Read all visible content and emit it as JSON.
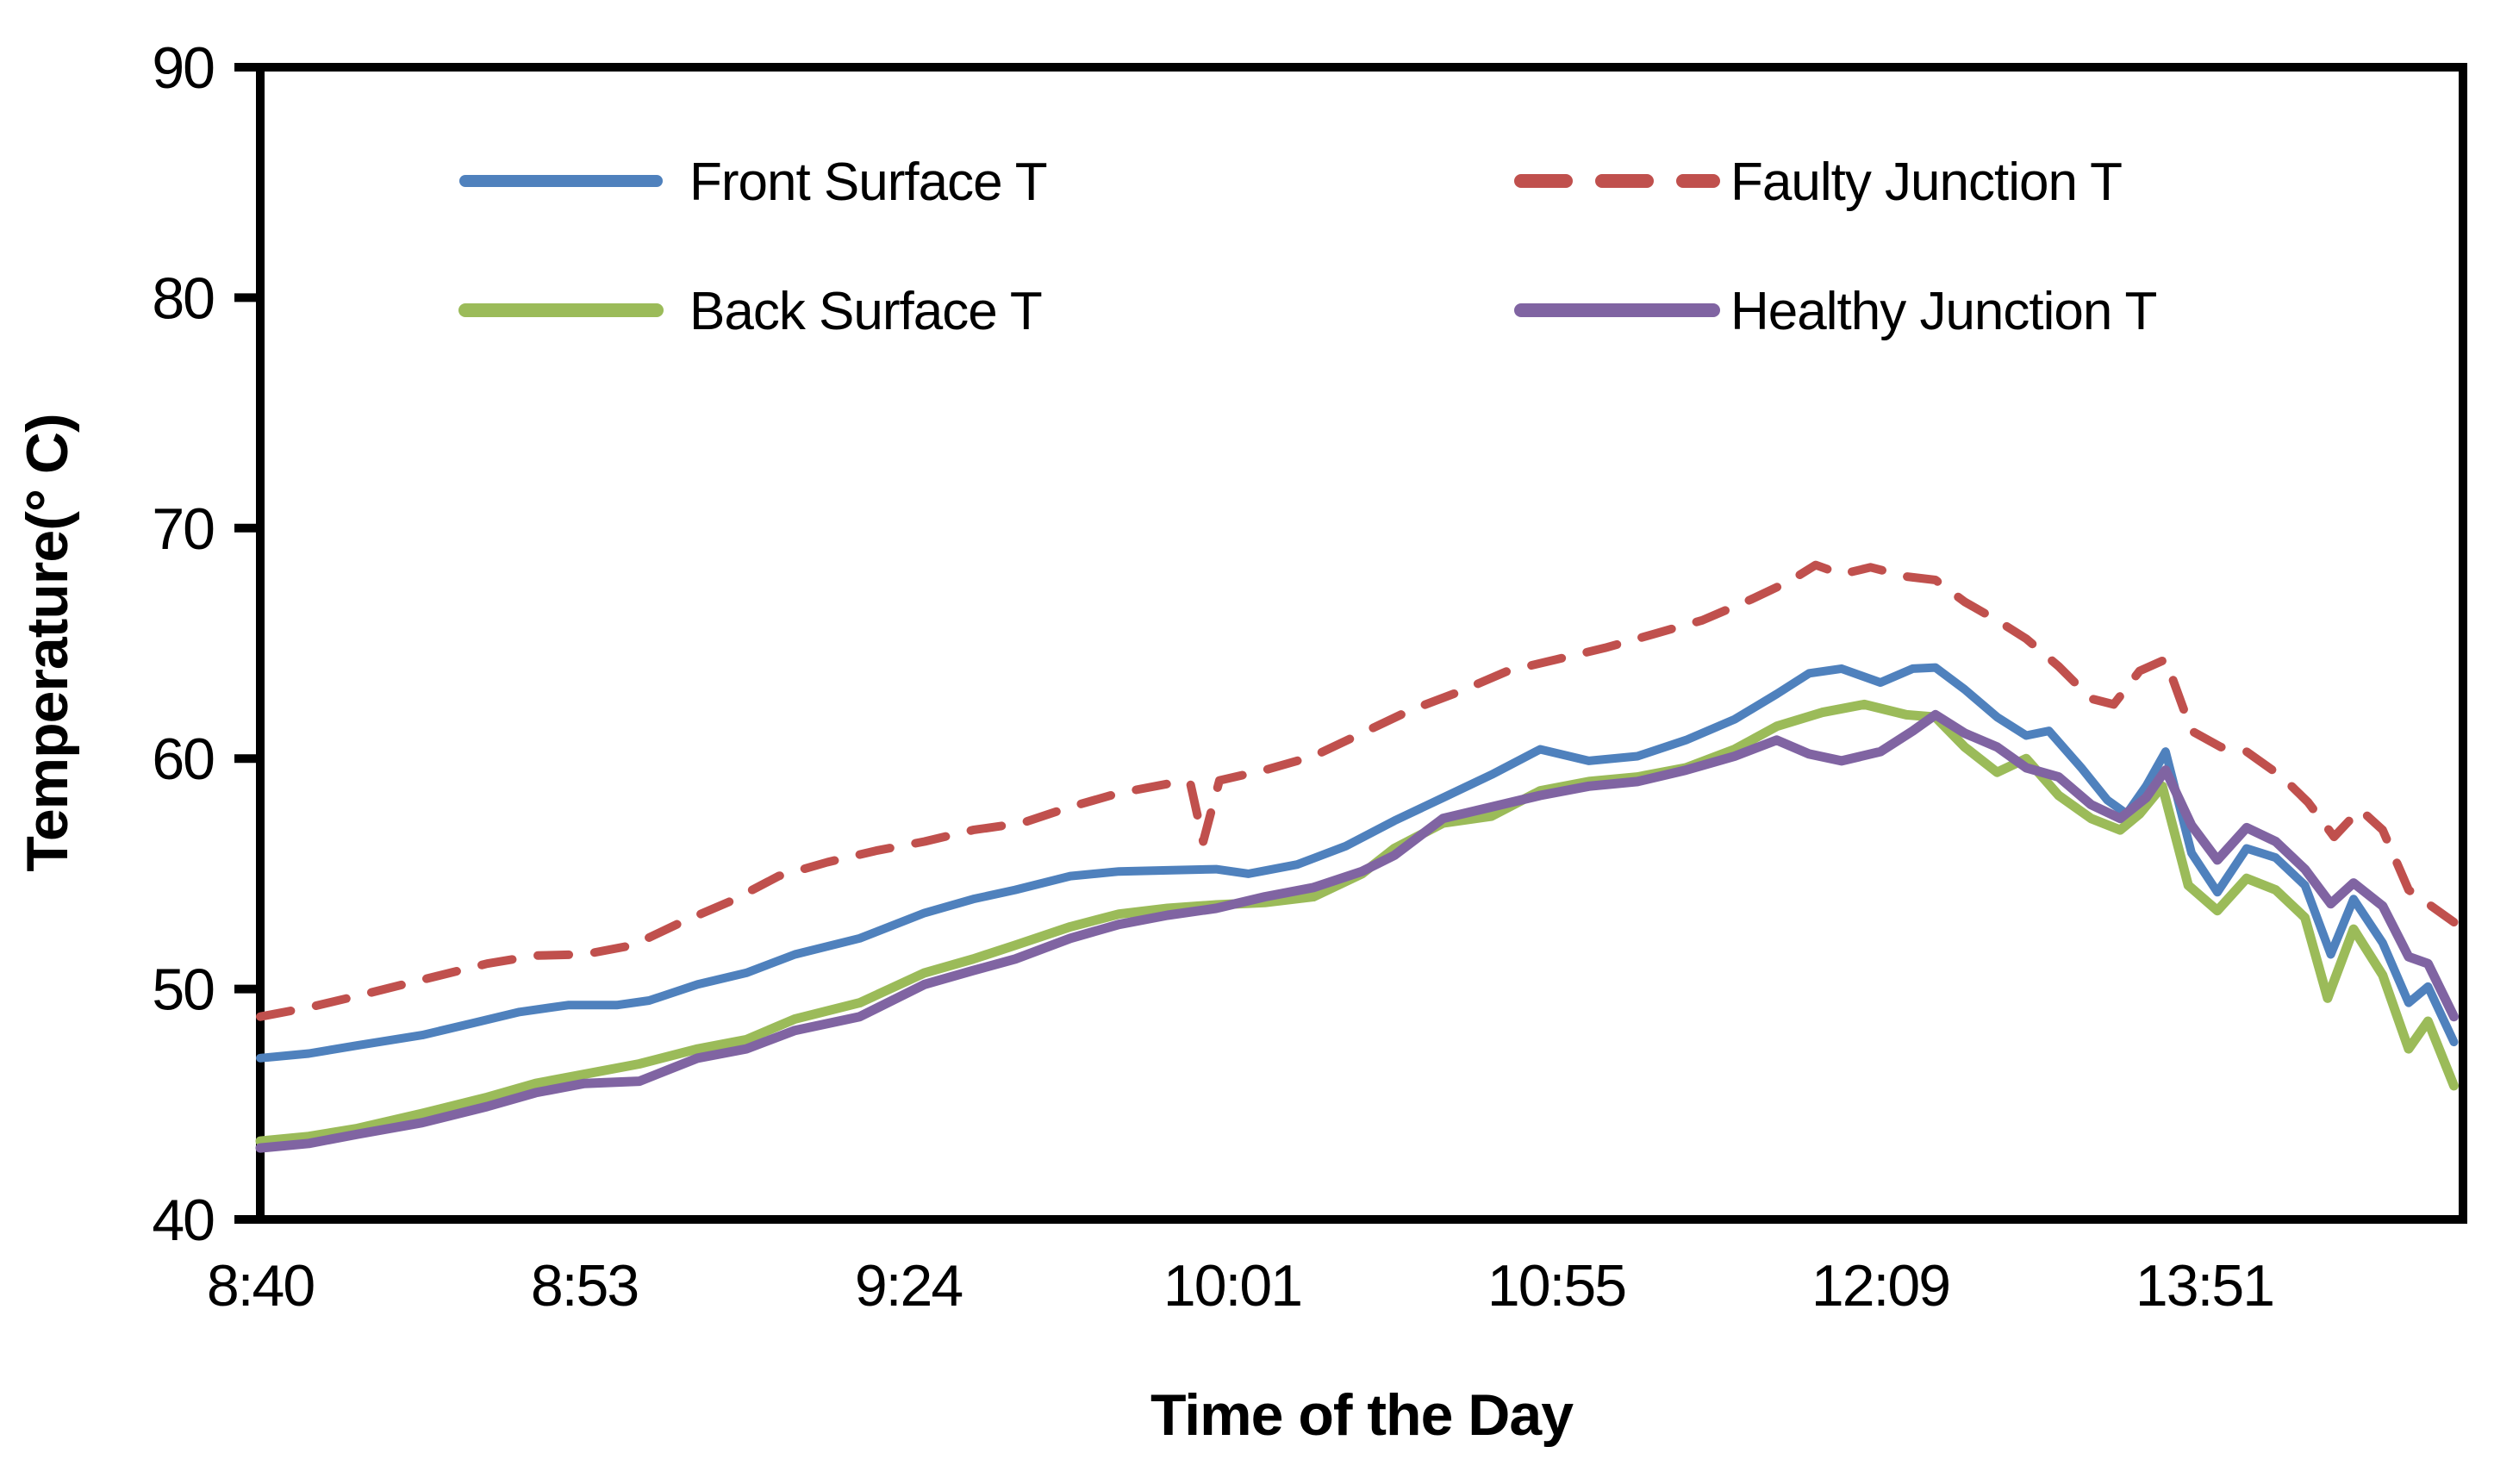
{
  "chart_data": {
    "type": "line",
    "title": "",
    "xlabel": "Time of the Day",
    "ylabel": "Temperature(° C)",
    "x_axis_type": "category",
    "x_tick_labels": [
      "8:40",
      "8:53",
      "9:24",
      "10:01",
      "10:55",
      "12:09",
      "13:51"
    ],
    "x_tick_units": [
      0,
      1,
      2,
      3,
      4,
      5,
      6
    ],
    "x_domain": [
      0,
      6.8
    ],
    "y_ticks": [
      40,
      50,
      60,
      70,
      80,
      90
    ],
    "ylim": [
      40,
      90
    ],
    "grid": false,
    "legend_position": "top-inside",
    "frame": "box",
    "axis_color": "#000000",
    "series": [
      {
        "name": "Front Surface T",
        "color": "#4F81BD",
        "style": "solid",
        "points": [
          [
            0,
            47.0
          ],
          [
            0.15,
            47.2
          ],
          [
            0.3,
            47.55
          ],
          [
            0.5,
            48.0
          ],
          [
            0.65,
            48.5
          ],
          [
            0.8,
            49.0
          ],
          [
            0.95,
            49.3
          ],
          [
            1.1,
            49.3
          ],
          [
            1.2,
            49.5
          ],
          [
            1.35,
            50.2
          ],
          [
            1.5,
            50.7
          ],
          [
            1.65,
            51.5
          ],
          [
            1.85,
            52.2
          ],
          [
            2.05,
            53.3
          ],
          [
            2.2,
            53.9
          ],
          [
            2.33,
            54.3
          ],
          [
            2.5,
            54.9
          ],
          [
            2.65,
            55.1
          ],
          [
            2.8,
            55.15
          ],
          [
            2.95,
            55.2
          ],
          [
            3.05,
            55.0
          ],
          [
            3.2,
            55.4
          ],
          [
            3.35,
            56.2
          ],
          [
            3.5,
            57.3
          ],
          [
            3.65,
            58.3
          ],
          [
            3.8,
            59.3
          ],
          [
            3.95,
            60.4
          ],
          [
            4.1,
            59.9
          ],
          [
            4.25,
            60.1
          ],
          [
            4.4,
            60.8
          ],
          [
            4.55,
            61.7
          ],
          [
            4.68,
            62.8
          ],
          [
            4.78,
            63.7
          ],
          [
            4.88,
            63.9
          ],
          [
            5.0,
            63.3
          ],
          [
            5.1,
            63.9
          ],
          [
            5.17,
            63.95
          ],
          [
            5.26,
            63.0
          ],
          [
            5.36,
            61.8
          ],
          [
            5.45,
            61.0
          ],
          [
            5.52,
            61.2
          ],
          [
            5.62,
            59.6
          ],
          [
            5.7,
            58.2
          ],
          [
            5.76,
            57.6
          ],
          [
            5.82,
            58.8
          ],
          [
            5.88,
            60.3
          ],
          [
            5.96,
            55.9
          ],
          [
            6.04,
            54.2
          ],
          [
            6.13,
            56.1
          ],
          [
            6.22,
            55.7
          ],
          [
            6.31,
            54.5
          ],
          [
            6.39,
            51.5
          ],
          [
            6.46,
            53.9
          ],
          [
            6.55,
            52.0
          ],
          [
            6.63,
            49.4
          ],
          [
            6.69,
            50.1
          ],
          [
            6.77,
            47.7
          ]
        ]
      },
      {
        "name": "Faulty Junction T",
        "color": "#C0504D",
        "style": "dashed",
        "points": [
          [
            0,
            48.8
          ],
          [
            0.15,
            49.2
          ],
          [
            0.3,
            49.7
          ],
          [
            0.5,
            50.4
          ],
          [
            0.7,
            51.1
          ],
          [
            0.85,
            51.45
          ],
          [
            1.0,
            51.5
          ],
          [
            1.15,
            51.9
          ],
          [
            1.3,
            52.9
          ],
          [
            1.45,
            53.8
          ],
          [
            1.6,
            54.9
          ],
          [
            1.75,
            55.5
          ],
          [
            1.9,
            56.0
          ],
          [
            2.05,
            56.4
          ],
          [
            2.2,
            56.9
          ],
          [
            2.35,
            57.2
          ],
          [
            2.5,
            57.9
          ],
          [
            2.65,
            58.5
          ],
          [
            2.8,
            58.9
          ],
          [
            2.87,
            58.95
          ],
          [
            2.91,
            56.4
          ],
          [
            2.96,
            59.05
          ],
          [
            3.1,
            59.5
          ],
          [
            3.25,
            60.1
          ],
          [
            3.4,
            61.1
          ],
          [
            3.55,
            62.1
          ],
          [
            3.7,
            62.9
          ],
          [
            3.85,
            63.8
          ],
          [
            4.0,
            64.3
          ],
          [
            4.15,
            64.8
          ],
          [
            4.3,
            65.4
          ],
          [
            4.45,
            66.0
          ],
          [
            4.6,
            66.9
          ],
          [
            4.72,
            67.7
          ],
          [
            4.8,
            68.4
          ],
          [
            4.88,
            68.0
          ],
          [
            4.97,
            68.3
          ],
          [
            5.08,
            67.9
          ],
          [
            5.17,
            67.75
          ],
          [
            5.26,
            66.8
          ],
          [
            5.36,
            66.0
          ],
          [
            5.45,
            65.2
          ],
          [
            5.55,
            64.0
          ],
          [
            5.65,
            62.6
          ],
          [
            5.72,
            62.35
          ],
          [
            5.8,
            63.8
          ],
          [
            5.88,
            64.3
          ],
          [
            5.96,
            61.2
          ],
          [
            6.05,
            60.5
          ],
          [
            6.13,
            60.3
          ],
          [
            6.24,
            59.2
          ],
          [
            6.32,
            58.1
          ],
          [
            6.4,
            56.6
          ],
          [
            6.48,
            57.8
          ],
          [
            6.55,
            56.9
          ],
          [
            6.63,
            54.3
          ],
          [
            6.7,
            53.6
          ],
          [
            6.77,
            52.9
          ]
        ]
      },
      {
        "name": "Back Surface T",
        "color": "#9BBB59",
        "style": "solid",
        "points": [
          [
            0,
            43.4
          ],
          [
            0.15,
            43.6
          ],
          [
            0.3,
            43.95
          ],
          [
            0.5,
            44.6
          ],
          [
            0.7,
            45.3
          ],
          [
            0.85,
            45.9
          ],
          [
            1.0,
            46.3
          ],
          [
            1.17,
            46.75
          ],
          [
            1.35,
            47.4
          ],
          [
            1.5,
            47.8
          ],
          [
            1.65,
            48.7
          ],
          [
            1.85,
            49.4
          ],
          [
            2.05,
            50.7
          ],
          [
            2.2,
            51.3
          ],
          [
            2.33,
            51.9
          ],
          [
            2.5,
            52.7
          ],
          [
            2.65,
            53.25
          ],
          [
            2.8,
            53.5
          ],
          [
            2.95,
            53.65
          ],
          [
            3.1,
            53.75
          ],
          [
            3.25,
            54.0
          ],
          [
            3.4,
            55.0
          ],
          [
            3.5,
            56.1
          ],
          [
            3.65,
            57.2
          ],
          [
            3.8,
            57.5
          ],
          [
            3.95,
            58.6
          ],
          [
            4.1,
            59.0
          ],
          [
            4.25,
            59.2
          ],
          [
            4.4,
            59.6
          ],
          [
            4.55,
            60.4
          ],
          [
            4.68,
            61.4
          ],
          [
            4.82,
            62.0
          ],
          [
            4.95,
            62.35
          ],
          [
            5.08,
            61.9
          ],
          [
            5.17,
            61.8
          ],
          [
            5.26,
            60.5
          ],
          [
            5.36,
            59.4
          ],
          [
            5.45,
            60.0
          ],
          [
            5.55,
            58.4
          ],
          [
            5.65,
            57.4
          ],
          [
            5.74,
            56.9
          ],
          [
            5.8,
            57.6
          ],
          [
            5.87,
            58.8
          ],
          [
            5.95,
            54.5
          ],
          [
            6.04,
            53.4
          ],
          [
            6.13,
            54.8
          ],
          [
            6.22,
            54.3
          ],
          [
            6.31,
            53.1
          ],
          [
            6.38,
            49.6
          ],
          [
            6.46,
            52.6
          ],
          [
            6.55,
            50.6
          ],
          [
            6.63,
            47.4
          ],
          [
            6.69,
            48.6
          ],
          [
            6.77,
            45.8
          ]
        ]
      },
      {
        "name": "Healthy Junction T",
        "color": "#8064A2",
        "style": "solid",
        "points": [
          [
            0,
            43.1
          ],
          [
            0.15,
            43.3
          ],
          [
            0.3,
            43.7
          ],
          [
            0.5,
            44.2
          ],
          [
            0.7,
            44.9
          ],
          [
            0.85,
            45.5
          ],
          [
            1.0,
            45.9
          ],
          [
            1.17,
            46.0
          ],
          [
            1.35,
            47.0
          ],
          [
            1.5,
            47.4
          ],
          [
            1.65,
            48.2
          ],
          [
            1.85,
            48.8
          ],
          [
            2.05,
            50.2
          ],
          [
            2.2,
            50.8
          ],
          [
            2.33,
            51.3
          ],
          [
            2.5,
            52.2
          ],
          [
            2.65,
            52.8
          ],
          [
            2.8,
            53.2
          ],
          [
            2.95,
            53.5
          ],
          [
            3.1,
            54.0
          ],
          [
            3.25,
            54.4
          ],
          [
            3.4,
            55.1
          ],
          [
            3.5,
            55.8
          ],
          [
            3.65,
            57.4
          ],
          [
            3.8,
            57.9
          ],
          [
            3.95,
            58.4
          ],
          [
            4.1,
            58.8
          ],
          [
            4.25,
            59.0
          ],
          [
            4.4,
            59.5
          ],
          [
            4.55,
            60.1
          ],
          [
            4.68,
            60.8
          ],
          [
            4.78,
            60.2
          ],
          [
            4.88,
            59.9
          ],
          [
            5.0,
            60.3
          ],
          [
            5.1,
            61.2
          ],
          [
            5.17,
            61.9
          ],
          [
            5.26,
            61.1
          ],
          [
            5.36,
            60.5
          ],
          [
            5.45,
            59.6
          ],
          [
            5.55,
            59.2
          ],
          [
            5.65,
            58.0
          ],
          [
            5.74,
            57.4
          ],
          [
            5.82,
            58.3
          ],
          [
            5.88,
            59.5
          ],
          [
            5.96,
            57.1
          ],
          [
            6.04,
            55.6
          ],
          [
            6.13,
            57.0
          ],
          [
            6.22,
            56.4
          ],
          [
            6.31,
            55.2
          ],
          [
            6.39,
            53.7
          ],
          [
            6.46,
            54.6
          ],
          [
            6.55,
            53.6
          ],
          [
            6.63,
            51.4
          ],
          [
            6.69,
            51.1
          ],
          [
            6.77,
            48.8
          ]
        ]
      }
    ]
  },
  "legend": {
    "col1_row1": "Front Surface T",
    "col1_row2": "Back Surface T",
    "col2_row1": "Faulty Junction T",
    "col2_row2": "Healthy Junction T"
  }
}
